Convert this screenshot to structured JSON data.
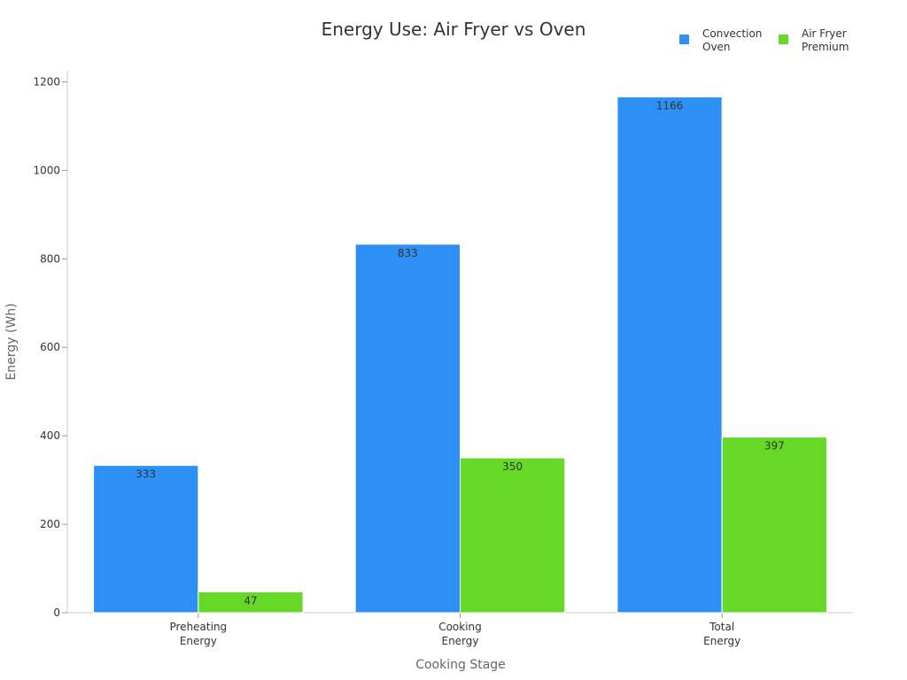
{
  "chart_data": {
    "type": "bar",
    "title": "Energy Use: Air Fryer vs Oven",
    "xlabel": "Cooking Stage",
    "ylabel": "Energy (Wh)",
    "categories": [
      [
        "Preheating",
        "Energy"
      ],
      [
        "Cooking",
        "Energy"
      ],
      [
        "Total",
        "Energy"
      ]
    ],
    "ylim": [
      0,
      1225
    ],
    "yticks": [
      0,
      200,
      400,
      600,
      800,
      1000,
      1200
    ],
    "legend_position": "top-right",
    "series": [
      {
        "name": [
          "Convection",
          "Oven"
        ],
        "color": "#2e90f5",
        "values": [
          333,
          833,
          1166
        ]
      },
      {
        "name": [
          "Air Fryer",
          "Premium"
        ],
        "color": "#66d926",
        "values": [
          47,
          350,
          397
        ]
      }
    ]
  }
}
